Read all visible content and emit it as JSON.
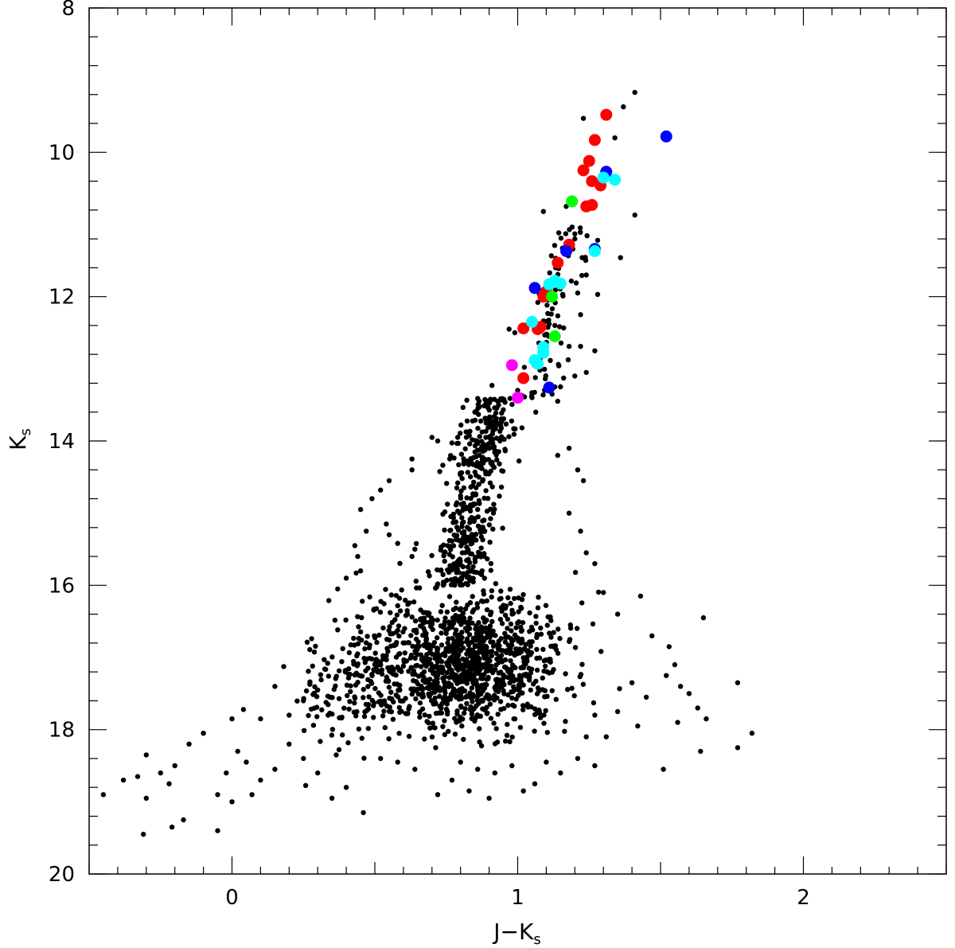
{
  "chart_data": {
    "type": "scatter",
    "title": "",
    "xlabel": "J−K",
    "xlabel_sub": "s",
    "ylabel": "K",
    "ylabel_sub": "s",
    "xlim": [
      -0.5,
      2.5
    ],
    "ylim": [
      20,
      8
    ],
    "y_inverted": true,
    "grid": false,
    "x_major_ticks": [
      0,
      1,
      2
    ],
    "x_tick_labels": [
      "0",
      "1",
      "2"
    ],
    "x_minor_step": 0.1,
    "y_major_ticks": [
      8,
      10,
      12,
      14,
      16,
      18,
      20
    ],
    "y_tick_labels": [
      "8",
      "10",
      "12",
      "14",
      "16",
      "18",
      "20"
    ],
    "y_minor_step": 0.4,
    "series": [
      {
        "color": "#000000",
        "marker": "small-dot",
        "points_generation": "dense cluster near (0.8, 17), red giant branch rising to (1.4, 9.2)",
        "points": [
          [
            1.41,
            9.17
          ],
          [
            1.37,
            9.37
          ],
          [
            1.23,
            9.53
          ],
          [
            1.34,
            9.8
          ],
          [
            1.41,
            10.87
          ],
          [
            1.36,
            11.46
          ],
          [
            1.28,
            11.22
          ],
          [
            1.24,
            11.7
          ],
          [
            1.21,
            11.95
          ],
          [
            1.28,
            11.97
          ],
          [
            1.09,
            10.82
          ],
          [
            1.17,
            10.75
          ],
          [
            1.2,
            11.2
          ],
          [
            1.13,
            11.55
          ],
          [
            1.22,
            12.25
          ],
          [
            1.13,
            12.4
          ],
          [
            1.18,
            12.69
          ],
          [
            1.22,
            12.69
          ],
          [
            1.27,
            12.75
          ],
          [
            1.24,
            13.05
          ],
          [
            1.2,
            13.1
          ],
          [
            1.15,
            13.25
          ],
          [
            1.14,
            13.45
          ],
          [
            1.05,
            13.4
          ],
          [
            1.0,
            13.3
          ],
          [
            0.97,
            12.45
          ],
          [
            0.99,
            12.5
          ],
          [
            0.93,
            13.45
          ],
          [
            0.91,
            13.23
          ],
          [
            0.85,
            13.6
          ],
          [
            0.79,
            13.95
          ],
          [
            0.72,
            14.0
          ],
          [
            0.7,
            13.95
          ],
          [
            0.63,
            14.25
          ],
          [
            0.63,
            14.4
          ],
          [
            0.55,
            14.55
          ],
          [
            0.52,
            14.68
          ],
          [
            0.49,
            14.8
          ],
          [
            0.45,
            14.95
          ],
          [
            0.47,
            15.25
          ],
          [
            0.43,
            15.45
          ],
          [
            0.44,
            15.6
          ],
          [
            0.45,
            15.8
          ],
          [
            0.4,
            15.9
          ],
          [
            0.37,
            16.05
          ],
          [
            0.54,
            15.15
          ],
          [
            0.55,
            15.3
          ],
          [
            0.58,
            15.42
          ],
          [
            0.64,
            15.5
          ],
          [
            0.63,
            15.6
          ],
          [
            1.14,
            14.2
          ],
          [
            1.18,
            14.1
          ],
          [
            1.21,
            14.4
          ],
          [
            1.23,
            14.55
          ],
          [
            1.18,
            15.0
          ],
          [
            1.22,
            15.25
          ],
          [
            1.24,
            15.55
          ],
          [
            1.27,
            15.7
          ],
          [
            1.3,
            16.1
          ],
          [
            1.35,
            16.4
          ],
          [
            1.43,
            16.15
          ],
          [
            1.47,
            16.7
          ],
          [
            1.53,
            16.85
          ],
          [
            1.52,
            17.25
          ],
          [
            1.45,
            17.55
          ],
          [
            1.42,
            17.95
          ],
          [
            1.35,
            17.75
          ],
          [
            1.27,
            17.8
          ],
          [
            1.24,
            18.1
          ],
          [
            1.21,
            18.4
          ],
          [
            1.31,
            18.1
          ],
          [
            1.27,
            18.5
          ],
          [
            1.51,
            18.55
          ],
          [
            1.57,
            17.4
          ],
          [
            1.6,
            17.5
          ],
          [
            1.63,
            17.7
          ],
          [
            1.66,
            17.85
          ],
          [
            1.64,
            18.3
          ],
          [
            1.65,
            16.45
          ],
          [
            1.77,
            17.35
          ],
          [
            1.77,
            18.25
          ],
          [
            1.82,
            18.05
          ],
          [
            1.55,
            17.1
          ],
          [
            1.56,
            17.9
          ],
          [
            1.4,
            17.35
          ],
          [
            0.02,
            18.3
          ],
          [
            0.05,
            18.45
          ],
          [
            -0.02,
            18.6
          ],
          [
            -0.05,
            18.9
          ],
          [
            0.0,
            19.0
          ],
          [
            -0.1,
            18.05
          ],
          [
            -0.15,
            18.2
          ],
          [
            -0.2,
            18.5
          ],
          [
            -0.22,
            18.75
          ],
          [
            -0.25,
            18.6
          ],
          [
            -0.3,
            18.35
          ],
          [
            -0.33,
            18.65
          ],
          [
            -0.38,
            18.7
          ],
          [
            -0.45,
            18.9
          ],
          [
            -0.3,
            18.95
          ],
          [
            -0.21,
            19.35
          ],
          [
            -0.17,
            19.25
          ],
          [
            -0.05,
            19.4
          ],
          [
            -0.31,
            19.45
          ],
          [
            0.07,
            18.9
          ],
          [
            0.1,
            18.7
          ],
          [
            0.15,
            18.55
          ],
          [
            0.2,
            18.2
          ],
          [
            0.25,
            18.4
          ],
          [
            0.3,
            18.6
          ],
          [
            0.35,
            18.95
          ],
          [
            0.4,
            18.8
          ],
          [
            0.46,
            19.15
          ],
          [
            0.2,
            17.8
          ],
          [
            0.25,
            17.6
          ],
          [
            0.3,
            17.45
          ],
          [
            0.15,
            17.4
          ],
          [
            0.1,
            17.85
          ],
          [
            0.04,
            17.72
          ],
          [
            0.0,
            17.85
          ],
          [
            0.9,
            18.95
          ],
          [
            0.83,
            18.85
          ],
          [
            0.77,
            18.7
          ],
          [
            0.72,
            18.9
          ],
          [
            0.64,
            18.55
          ],
          [
            0.58,
            18.45
          ],
          [
            0.52,
            18.4
          ],
          [
            1.02,
            18.85
          ],
          [
            1.06,
            18.75
          ],
          [
            1.1,
            18.45
          ],
          [
            1.15,
            18.6
          ],
          [
            0.92,
            18.6
          ],
          [
            0.98,
            18.5
          ],
          [
            0.86,
            18.55
          ],
          [
            0.8,
            18.45
          ]
        ]
      },
      {
        "color": "#ff0000",
        "marker": "large-dot",
        "points": [
          [
            1.31,
            9.48
          ],
          [
            1.27,
            9.83
          ],
          [
            1.25,
            10.12
          ],
          [
            1.23,
            10.25
          ],
          [
            1.26,
            10.4
          ],
          [
            1.29,
            10.46
          ],
          [
            1.24,
            10.75
          ],
          [
            1.26,
            10.73
          ],
          [
            1.18,
            11.28
          ],
          [
            1.14,
            11.53
          ],
          [
            1.1,
            11.93
          ],
          [
            1.09,
            12.0
          ],
          [
            1.02,
            12.44
          ],
          [
            1.07,
            12.45
          ],
          [
            1.08,
            12.42
          ],
          [
            1.02,
            13.13
          ]
        ]
      },
      {
        "color": "#0000ff",
        "marker": "large-dot",
        "points": [
          [
            1.52,
            9.78
          ],
          [
            1.31,
            10.27
          ],
          [
            1.27,
            11.34
          ],
          [
            1.17,
            11.37
          ],
          [
            1.06,
            11.88
          ],
          [
            1.11,
            13.26
          ]
        ]
      },
      {
        "color": "#00ffff",
        "marker": "large-dot",
        "points": [
          [
            1.3,
            10.35
          ],
          [
            1.34,
            10.38
          ],
          [
            1.27,
            11.37
          ],
          [
            1.13,
            11.78
          ],
          [
            1.15,
            11.82
          ],
          [
            1.11,
            11.83
          ],
          [
            1.05,
            12.35
          ],
          [
            1.09,
            12.7
          ],
          [
            1.09,
            12.78
          ],
          [
            1.06,
            12.88
          ],
          [
            1.07,
            12.93
          ]
        ]
      },
      {
        "color": "#00ff00",
        "marker": "large-dot",
        "points": [
          [
            1.19,
            10.68
          ],
          [
            1.12,
            12.0
          ],
          [
            1.13,
            12.55
          ]
        ]
      },
      {
        "color": "#ff00ff",
        "marker": "large-dot",
        "points": [
          [
            0.98,
            12.95
          ],
          [
            1.0,
            13.4
          ]
        ]
      }
    ]
  }
}
